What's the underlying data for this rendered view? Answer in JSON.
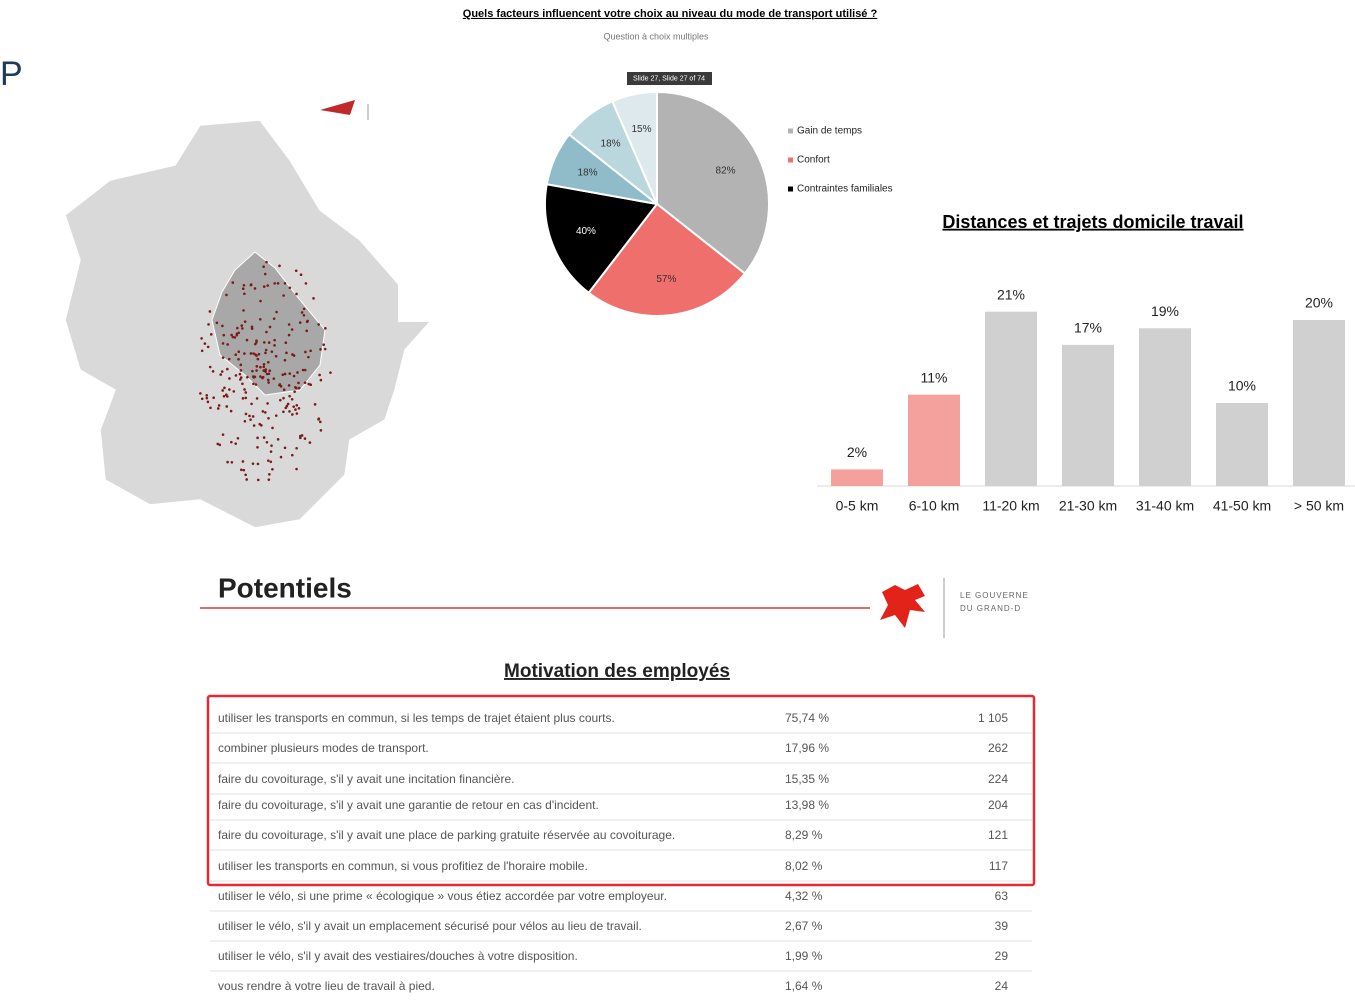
{
  "header": {
    "corner_text": "P"
  },
  "chart_data": [
    {
      "type": "pie",
      "title": "Quels facteurs influencent votre choix au niveau du mode de transport utilisé ?",
      "subtitle": "Question à choix multiples",
      "tooltip": "Slide 27, Slide 27 of 74",
      "categories": [
        "Gain de temps",
        "Confort",
        "Contraintes familiales",
        null,
        null,
        null
      ],
      "values": [
        82,
        57,
        40,
        18,
        18,
        15
      ],
      "value_labels": [
        "82%",
        "57%",
        "40%",
        "18%",
        "18%",
        "15%"
      ],
      "colors": [
        "#b3b3b3",
        "#ef6f6c",
        "#000000",
        "#8fbcc8",
        "#b9d7dd",
        "#dde9ec"
      ]
    },
    {
      "type": "bar",
      "title": "Distances et trajets domicile travail",
      "categories": [
        "0-5 km",
        "6-10 km",
        "11-20 km",
        "21-30 km",
        "31-40 km",
        "41-50 km",
        "> 50 km"
      ],
      "values": [
        2,
        11,
        21,
        17,
        19,
        10,
        20
      ],
      "value_labels": [
        "2%",
        "11%",
        "21%",
        "17%",
        "19%",
        "10%",
        "20%"
      ],
      "colors": [
        "#f4a09c",
        "#f4a09c",
        "#d0d0d0",
        "#d0d0d0",
        "#d0d0d0",
        "#d0d0d0",
        "#d0d0d0"
      ]
    }
  ],
  "section": {
    "title": "Potentiels",
    "logo_line1": "LE GOUVERNE",
    "logo_line2": "DU GRAND-D"
  },
  "table": {
    "title": "Motivation des employés",
    "rows": [
      [
        "utiliser les transports en commun, si les temps de trajet étaient plus courts.",
        "75,74 %",
        "1 105"
      ],
      [
        "combiner plusieurs modes de transport.",
        "17,96 %",
        "262"
      ],
      [
        "faire du covoiturage, s'il y avait une incitation financière.",
        "15,35 %",
        "224"
      ],
      [
        "faire du covoiturage, s'il y avait une garantie de retour en cas d'incident.",
        "13,98 %",
        "204"
      ],
      [
        "faire du covoiturage, s'il y avait une place de parking gratuite réservée au covoiturage.",
        "8,29 %",
        "121"
      ],
      [
        "utiliser les transports en commun, si vous profitiez de l'horaire mobile.",
        "8,02 %",
        "117"
      ],
      [
        "utiliser le vélo, si une prime « écologique » vous étiez accordée par votre employeur.",
        "4,32 %",
        "63"
      ],
      [
        "utiliser le vélo, s'il y avait un emplacement sécurisé pour vélos au lieu de travail.",
        "2,67 %",
        "39"
      ],
      [
        "utiliser le vélo, s'il y avait des vestiaires/douches à votre disposition.",
        "1,99 %",
        "29"
      ],
      [
        "vous rendre à votre lieu de travail à pied.",
        "1,64 %",
        "24"
      ]
    ]
  }
}
